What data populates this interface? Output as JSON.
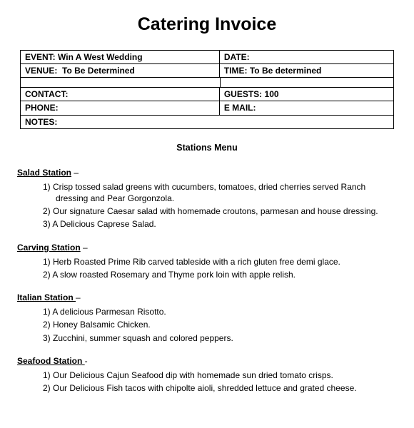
{
  "title": "Catering Invoice",
  "info": {
    "event_label": "EVENT:",
    "event_value": "Win A West Wedding",
    "date_label": "DATE:",
    "date_value": "",
    "venue_label": "VENUE:",
    "venue_value": "To Be Determined",
    "time_label": "TIME:",
    "time_value": "To Be determined",
    "contact_label": "CONTACT:",
    "contact_value": "",
    "guests_label": "GUESTS:",
    "guests_value": "100",
    "phone_label": "PHONE:",
    "phone_value": "",
    "email_label": "E MAIL:",
    "email_value": "",
    "notes_label": "NOTES:",
    "notes_value": ""
  },
  "menu_title": "Stations Menu",
  "stations": [
    {
      "name": "Salad Station",
      "dash": " –",
      "items": [
        "Crisp tossed salad greens with cucumbers, tomatoes, dried cherries served Ranch dressing and Pear Gorgonzola.",
        "Our signature Caesar salad with homemade croutons, parmesan and house dressing.",
        "A Delicious Caprese Salad."
      ]
    },
    {
      "name": "Carving Station",
      "dash": " –",
      "items": [
        "Herb Roasted Prime Rib carved tableside with a rich gluten free demi glace.",
        "A slow roasted Rosemary and Thyme pork loin with apple relish."
      ]
    },
    {
      "name": "Italian Station ",
      "dash": "–",
      "items": [
        "A delicious Parmesan Risotto.",
        "Honey Balsamic Chicken.",
        "Zucchini, summer squash and colored peppers."
      ]
    },
    {
      "name": "Seafood Station ",
      "dash": "-",
      "items": [
        "Our Delicious Cajun Seafood dip with homemade sun dried tomato crisps.",
        "Our Delicious Fish tacos with chipolte aioli, shredded lettuce and grated cheese."
      ]
    }
  ]
}
